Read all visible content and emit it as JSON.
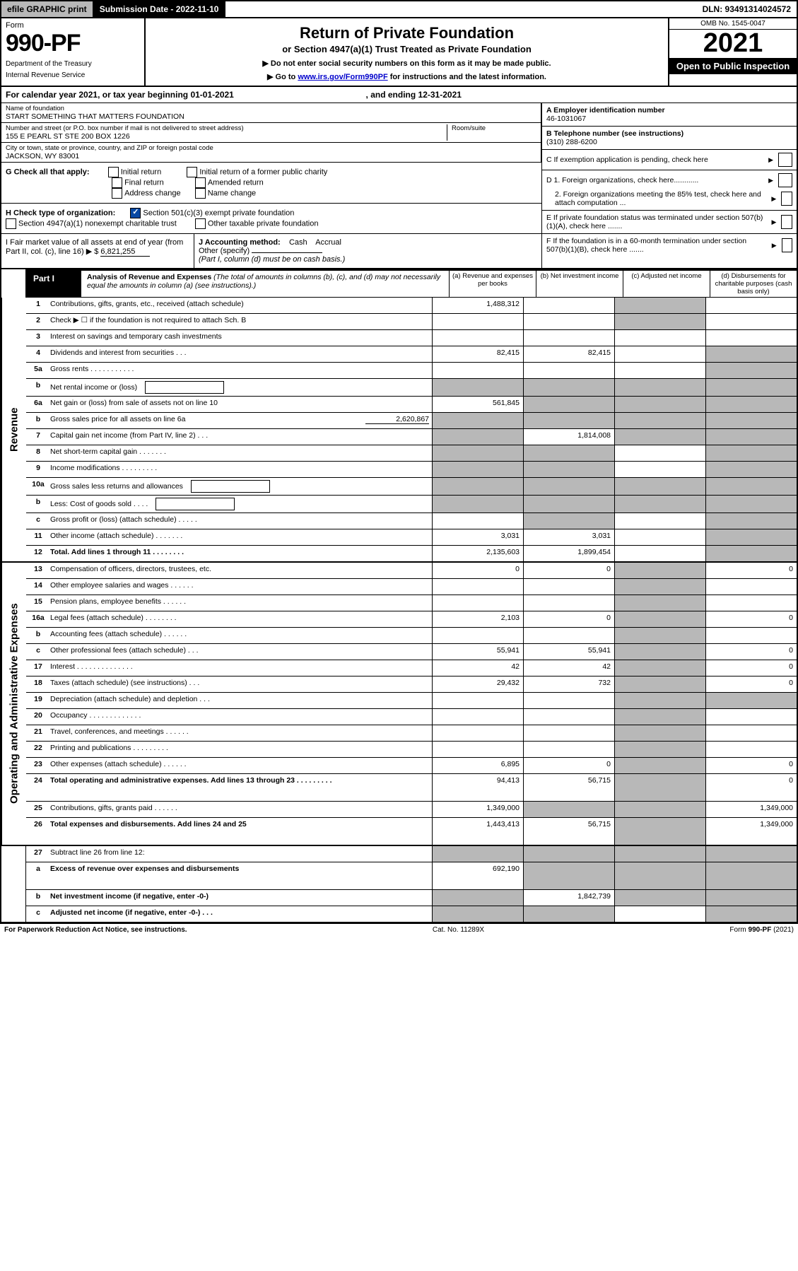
{
  "topbar": {
    "efile": "efile GRAPHIC print",
    "submission": "Submission Date - 2022-11-10",
    "dln": "DLN: 93491314024572"
  },
  "header": {
    "form_word": "Form",
    "form_number": "990-PF",
    "dept1": "Department of the Treasury",
    "dept2": "Internal Revenue Service",
    "title": "Return of Private Foundation",
    "subtitle": "or Section 4947(a)(1) Trust Treated as Private Foundation",
    "inst1": "▶ Do not enter social security numbers on this form as it may be made public.",
    "inst2_pre": "▶ Go to ",
    "inst2_link": "www.irs.gov/Form990PF",
    "inst2_post": " for instructions and the latest information.",
    "omb": "OMB No. 1545-0047",
    "year": "2021",
    "open": "Open to Public Inspection"
  },
  "period": {
    "text_pre": "For calendar year 2021, or tax year beginning ",
    "begin": "01-01-2021",
    "mid": " , and ending ",
    "end": "12-31-2021"
  },
  "name_block": {
    "label": "Name of foundation",
    "value": "START SOMETHING THAT MATTERS FOUNDATION",
    "addr_label": "Number and street (or P.O. box number if mail is not delivered to street address)",
    "addr": "155 E PEARL ST STE 200 BOX 1226",
    "room_label": "Room/suite",
    "city_label": "City or town, state or province, country, and ZIP or foreign postal code",
    "city": "JACKSON, WY  83001"
  },
  "a_block": {
    "label": "A Employer identification number",
    "value": "46-1031067"
  },
  "b_block": {
    "label": "B Telephone number (see instructions)",
    "value": "(310) 288-6200"
  },
  "c_block": {
    "label": "C If exemption application is pending, check here"
  },
  "g_block": {
    "label": "G Check all that apply:",
    "opts": [
      "Initial return",
      "Final return",
      "Address change",
      "Initial return of a former public charity",
      "Amended return",
      "Name change"
    ]
  },
  "d_block": {
    "d1": "D 1. Foreign organizations, check here............",
    "d2": "2. Foreign organizations meeting the 85% test, check here and attach computation ..."
  },
  "h_block": {
    "label": "H Check type of organization:",
    "opt1": "Section 501(c)(3) exempt private foundation",
    "opt2": "Section 4947(a)(1) nonexempt charitable trust",
    "opt3": "Other taxable private foundation"
  },
  "e_block": {
    "label": "E  If private foundation status was terminated under section 507(b)(1)(A), check here ......."
  },
  "i_block": {
    "label": "I Fair market value of all assets at end of year (from Part II, col. (c), line 16)",
    "val_prefix": "▶ $",
    "value": "6,821,255"
  },
  "j_block": {
    "label": "J Accounting method:",
    "cash": "Cash",
    "accrual": "Accrual",
    "other": "Other (specify)",
    "note": "(Part I, column (d) must be on cash basis.)"
  },
  "f_block": {
    "label": "F  If the foundation is in a 60-month termination under section 507(b)(1)(B), check here ......."
  },
  "part1": {
    "tag": "Part I",
    "title": "Analysis of Revenue and Expenses",
    "note": "(The total of amounts in columns (b), (c), and (d) may not necessarily equal the amounts in column (a) (see instructions).)",
    "cols": {
      "a": "(a)   Revenue and expenses per books",
      "b": "(b)   Net investment income",
      "c": "(c)   Adjusted net income",
      "d": "(d)   Disbursements for charitable purposes (cash basis only)"
    }
  },
  "side_labels": {
    "rev": "Revenue",
    "exp": "Operating and Administrative Expenses"
  },
  "rows": [
    {
      "n": "1",
      "d": "Contributions, gifts, grants, etc., received (attach schedule)",
      "a": "1,488,312",
      "b": "",
      "c_shade": true,
      "dd": ""
    },
    {
      "n": "2",
      "d": "Check ▶ ☐ if the foundation is not required to attach Sch. B",
      "a": "",
      "b": "",
      "c_shade": true,
      "dd": "",
      "all_shade_acd": true
    },
    {
      "n": "3",
      "d": "Interest on savings and temporary cash investments",
      "a": "",
      "b": "",
      "c": "",
      "dd": ""
    },
    {
      "n": "4",
      "d": "Dividends and interest from securities   .   .   .",
      "a": "82,415",
      "b": "82,415",
      "c": "",
      "dd_shade": true
    },
    {
      "n": "5a",
      "d": "Gross rents   .   .   .   .   .   .   .   .   .   .   .",
      "a": "",
      "b": "",
      "c": "",
      "dd_shade": true
    },
    {
      "n": "b",
      "d": "Net rental income or (loss)",
      "a_shade": true,
      "b_shade": true,
      "c_shade": true,
      "dd_shade": true,
      "inline_box": true
    },
    {
      "n": "6a",
      "d": "Net gain or (loss) from sale of assets not on line 10",
      "a": "561,845",
      "b_shade": true,
      "c_shade": true,
      "dd_shade": true
    },
    {
      "n": "b",
      "d": "Gross sales price for all assets on line 6a",
      "inline_val": "2,620,867",
      "a_shade": true,
      "b_shade": true,
      "c_shade": true,
      "dd_shade": true
    },
    {
      "n": "7",
      "d": "Capital gain net income (from Part IV, line 2)   .   .   .",
      "a_shade": true,
      "b": "1,814,008",
      "c_shade": true,
      "dd_shade": true
    },
    {
      "n": "8",
      "d": "Net short-term capital gain   .   .   .   .   .   .   .",
      "a_shade": true,
      "b_shade": true,
      "c": "",
      "dd_shade": true
    },
    {
      "n": "9",
      "d": "Income modifications   .   .   .   .   .   .   .   .   .",
      "a_shade": true,
      "b_shade": true,
      "c": "",
      "dd_shade": true
    },
    {
      "n": "10a",
      "d": "Gross sales less returns and allowances",
      "inline_box": true,
      "a_shade": true,
      "b_shade": true,
      "c_shade": true,
      "dd_shade": true
    },
    {
      "n": "b",
      "d": "Less: Cost of goods sold   .   .   .   .",
      "inline_box": true,
      "a_shade": true,
      "b_shade": true,
      "c_shade": true,
      "dd_shade": true
    },
    {
      "n": "c",
      "d": "Gross profit or (loss) (attach schedule)   .   .   .   .   .",
      "a": "",
      "b_shade": true,
      "c": "",
      "dd_shade": true
    },
    {
      "n": "11",
      "d": "Other income (attach schedule)   .   .   .   .   .   .   .",
      "a": "3,031",
      "b": "3,031",
      "c": "",
      "dd_shade": true
    },
    {
      "n": "12",
      "d": "Total. Add lines 1 through 11   .   .   .   .   .   .   .   .",
      "bold": true,
      "a": "2,135,603",
      "b": "1,899,454",
      "c": "",
      "dd_shade": true
    }
  ],
  "exp_rows": [
    {
      "n": "13",
      "d": "Compensation of officers, directors, trustees, etc.",
      "a": "0",
      "b": "0",
      "c_shade": true,
      "dd": "0"
    },
    {
      "n": "14",
      "d": "Other employee salaries and wages   .   .   .   .   .   .",
      "a": "",
      "b": "",
      "c_shade": true,
      "dd": ""
    },
    {
      "n": "15",
      "d": "Pension plans, employee benefits   .   .   .   .   .   .",
      "a": "",
      "b": "",
      "c_shade": true,
      "dd": ""
    },
    {
      "n": "16a",
      "d": "Legal fees (attach schedule)   .   .   .   .   .   .   .   .",
      "a": "2,103",
      "b": "0",
      "c_shade": true,
      "dd": "0"
    },
    {
      "n": "b",
      "d": "Accounting fees (attach schedule)   .   .   .   .   .   .",
      "a": "",
      "b": "",
      "c_shade": true,
      "dd": ""
    },
    {
      "n": "c",
      "d": "Other professional fees (attach schedule)   .   .   .",
      "a": "55,941",
      "b": "55,941",
      "c_shade": true,
      "dd": "0"
    },
    {
      "n": "17",
      "d": "Interest   .   .   .   .   .   .   .   .   .   .   .   .   .   .",
      "a": "42",
      "b": "42",
      "c_shade": true,
      "dd": "0"
    },
    {
      "n": "18",
      "d": "Taxes (attach schedule) (see instructions)   .   .   .",
      "a": "29,432",
      "b": "732",
      "c_shade": true,
      "dd": "0"
    },
    {
      "n": "19",
      "d": "Depreciation (attach schedule) and depletion   .   .   .",
      "a": "",
      "b": "",
      "c_shade": true,
      "dd_shade": true
    },
    {
      "n": "20",
      "d": "Occupancy   .   .   .   .   .   .   .   .   .   .   .   .   .",
      "a": "",
      "b": "",
      "c_shade": true,
      "dd": ""
    },
    {
      "n": "21",
      "d": "Travel, conferences, and meetings   .   .   .   .   .   .",
      "a": "",
      "b": "",
      "c_shade": true,
      "dd": ""
    },
    {
      "n": "22",
      "d": "Printing and publications   .   .   .   .   .   .   .   .   .",
      "a": "",
      "b": "",
      "c_shade": true,
      "dd": ""
    },
    {
      "n": "23",
      "d": "Other expenses (attach schedule)   .   .   .   .   .   .",
      "a": "6,895",
      "b": "0",
      "c_shade": true,
      "dd": "0"
    },
    {
      "n": "24",
      "d": "Total operating and administrative expenses. Add lines 13 through 23   .   .   .   .   .   .   .   .   .",
      "bold": true,
      "a": "94,413",
      "b": "56,715",
      "c_shade": true,
      "dd": "0",
      "tall": true
    },
    {
      "n": "25",
      "d": "Contributions, gifts, grants paid   .   .   .   .   .   .",
      "a": "1,349,000",
      "b_shade": true,
      "c_shade": true,
      "dd": "1,349,000"
    },
    {
      "n": "26",
      "d": "Total expenses and disbursements. Add lines 24 and 25",
      "bold": true,
      "a": "1,443,413",
      "b": "56,715",
      "c_shade": true,
      "dd": "1,349,000",
      "tall": true
    }
  ],
  "bottom_rows": [
    {
      "n": "27",
      "d": "Subtract line 26 from line 12:",
      "a_shade": true,
      "b_shade": true,
      "c_shade": true,
      "dd_shade": true
    },
    {
      "n": "a",
      "d": "Excess of revenue over expenses and disbursements",
      "bold": true,
      "a": "692,190",
      "b_shade": true,
      "c_shade": true,
      "dd_shade": true,
      "tall": true
    },
    {
      "n": "b",
      "d": "Net investment income (if negative, enter -0-)",
      "bold": true,
      "a_shade": true,
      "b": "1,842,739",
      "c_shade": true,
      "dd_shade": true
    },
    {
      "n": "c",
      "d": "Adjusted net income (if negative, enter -0-)   .   .   .",
      "bold": true,
      "a_shade": true,
      "b_shade": true,
      "c": "",
      "dd_shade": true
    }
  ],
  "footer": {
    "left": "For Paperwork Reduction Act Notice, see instructions.",
    "mid": "Cat. No. 11289X",
    "right": "Form 990-PF (2021)"
  }
}
